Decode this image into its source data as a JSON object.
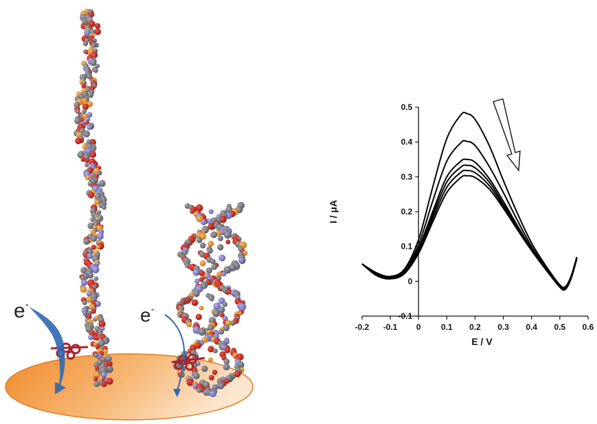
{
  "illustration": {
    "electron_labels": [
      {
        "base": "e",
        "superscript": "-"
      },
      {
        "base": "e",
        "superscript": "-"
      }
    ],
    "colors": {
      "electrode": "#f29a3c",
      "phosphate": "#c0281a",
      "carbon": "#6e6e76",
      "nitrogen": "#7b78c4",
      "phosphorus": "#e8902a",
      "redox_label": "#a8222c",
      "electron_arrow": "#2f68b2"
    }
  },
  "chart_data": {
    "type": "line",
    "xlabel": "E / V",
    "ylabel": "I / μA",
    "xlim": [
      -0.2,
      0.6
    ],
    "ylim": [
      -0.1,
      0.5
    ],
    "xticks": [
      "-0.2",
      "-0.1",
      "0",
      "0.1",
      "0.2",
      "0.3",
      "0.4",
      "0.5",
      "0.6"
    ],
    "yticks": [
      "-0.1",
      "0",
      "0.1",
      "0.2",
      "0.3",
      "0.4",
      "0.5"
    ],
    "grid": false,
    "legend": "none",
    "annotation": "arrow pointing down-right indicating decreasing peak current",
    "series": [
      {
        "x": [
          -0.2,
          -0.15,
          -0.1,
          -0.05,
          0,
          0.05,
          0.1,
          0.15,
          0.17,
          0.2,
          0.25,
          0.3,
          0.35,
          0.4,
          0.45,
          0.5,
          0.52,
          0.54,
          0.56
        ],
        "y": [
          0.05,
          0.025,
          0.014,
          0.035,
          0.12,
          0.27,
          0.41,
          0.478,
          0.482,
          0.465,
          0.39,
          0.29,
          0.195,
          0.11,
          0.045,
          -0.01,
          -0.015,
          0.015,
          0.07
        ]
      },
      {
        "x": [
          -0.2,
          -0.15,
          -0.1,
          -0.05,
          0,
          0.05,
          0.1,
          0.15,
          0.17,
          0.2,
          0.25,
          0.3,
          0.35,
          0.4,
          0.45,
          0.5,
          0.52,
          0.54,
          0.56
        ],
        "y": [
          0.05,
          0.022,
          0.012,
          0.03,
          0.105,
          0.23,
          0.345,
          0.398,
          0.402,
          0.39,
          0.33,
          0.255,
          0.175,
          0.1,
          0.04,
          -0.012,
          -0.018,
          0.012,
          0.068
        ]
      },
      {
        "x": [
          -0.2,
          -0.15,
          -0.1,
          -0.05,
          0,
          0.05,
          0.1,
          0.15,
          0.17,
          0.2,
          0.25,
          0.3,
          0.35,
          0.4,
          0.45,
          0.5,
          0.52,
          0.54,
          0.56
        ],
        "y": [
          0.05,
          0.02,
          0.01,
          0.028,
          0.095,
          0.2,
          0.3,
          0.345,
          0.35,
          0.342,
          0.295,
          0.23,
          0.16,
          0.094,
          0.038,
          -0.014,
          -0.02,
          0.01,
          0.066
        ]
      },
      {
        "x": [
          -0.2,
          -0.15,
          -0.1,
          -0.05,
          0,
          0.05,
          0.1,
          0.15,
          0.17,
          0.2,
          0.25,
          0.3,
          0.35,
          0.4,
          0.45,
          0.5,
          0.52,
          0.54,
          0.56
        ],
        "y": [
          0.05,
          0.019,
          0.009,
          0.026,
          0.09,
          0.19,
          0.285,
          0.328,
          0.333,
          0.326,
          0.285,
          0.222,
          0.156,
          0.092,
          0.036,
          -0.015,
          -0.021,
          0.01,
          0.066
        ]
      },
      {
        "x": [
          -0.2,
          -0.15,
          -0.1,
          -0.05,
          0,
          0.05,
          0.1,
          0.15,
          0.17,
          0.2,
          0.25,
          0.3,
          0.35,
          0.4,
          0.45,
          0.5,
          0.52,
          0.54,
          0.56
        ],
        "y": [
          0.05,
          0.018,
          0.008,
          0.024,
          0.085,
          0.18,
          0.27,
          0.313,
          0.318,
          0.312,
          0.275,
          0.216,
          0.152,
          0.09,
          0.035,
          -0.016,
          -0.022,
          0.009,
          0.065
        ]
      },
      {
        "x": [
          -0.2,
          -0.15,
          -0.1,
          -0.05,
          0,
          0.05,
          0.1,
          0.15,
          0.17,
          0.2,
          0.25,
          0.3,
          0.35,
          0.4,
          0.45,
          0.5,
          0.52,
          0.54,
          0.56
        ],
        "y": [
          0.05,
          0.017,
          0.007,
          0.022,
          0.08,
          0.17,
          0.255,
          0.298,
          0.303,
          0.298,
          0.265,
          0.21,
          0.148,
          0.088,
          0.034,
          -0.017,
          -0.023,
          0.008,
          0.064
        ]
      }
    ]
  }
}
